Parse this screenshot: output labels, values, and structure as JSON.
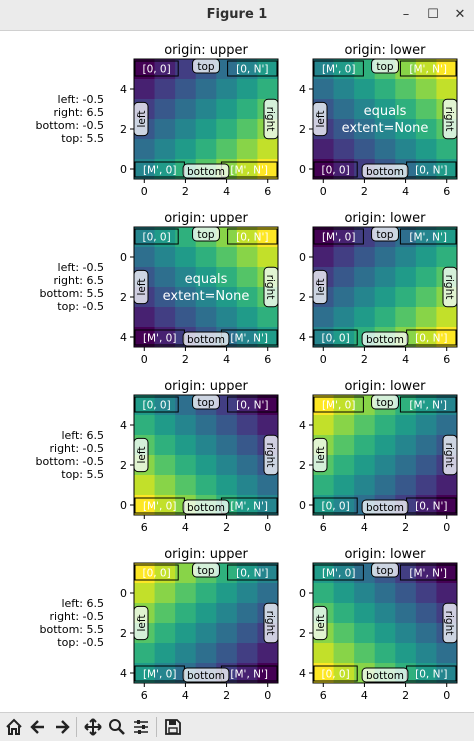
{
  "window": {
    "title": "Figure 1",
    "minimize": "–",
    "maximize": "☐",
    "close": "✕"
  },
  "toolbar": [
    {
      "name": "home-icon"
    },
    {
      "name": "back-icon"
    },
    {
      "name": "forward-icon"
    },
    {
      "name": "pan-icon"
    },
    {
      "name": "zoom-icon"
    },
    {
      "name": "configure-subplots-icon"
    },
    {
      "name": "save-icon"
    }
  ],
  "rows": [
    {
      "label": [
        "left: -0.5",
        "right: 6.5",
        "bottom: -0.5",
        "top: 5.5"
      ]
    },
    {
      "label": [
        "left: -0.5",
        "right: 6.5",
        "bottom: 5.5",
        "top: -0.5"
      ]
    },
    {
      "label": [
        "left: 6.5",
        "right: -0.5",
        "bottom: -0.5",
        "top: 5.5"
      ]
    },
    {
      "label": [
        "left: 6.5",
        "right: -0.5",
        "bottom: 5.5",
        "top: -0.5"
      ]
    }
  ],
  "chart_data": [
    {
      "type": "heatmap",
      "title": "origin: upper",
      "xlim": [
        -0.5,
        6.5
      ],
      "ylim": [
        -0.5,
        5.5
      ],
      "xticks": [
        "0",
        "2",
        "4",
        "6"
      ],
      "yticks": [
        "4",
        "2",
        "0"
      ],
      "corners": {
        "tl": "[0, 0]",
        "tr": "[0, N']",
        "bl": "[M', 0]",
        "br": "[M', N']"
      },
      "sides": {
        "top": "top",
        "bottom": "bottom",
        "left": "left",
        "right": "right"
      },
      "note": ""
    },
    {
      "type": "heatmap",
      "title": "origin: lower",
      "xlim": [
        -0.5,
        6.5
      ],
      "ylim": [
        -0.5,
        5.5
      ],
      "xticks": [
        "0",
        "2",
        "4",
        "6"
      ],
      "yticks": [
        "4",
        "2",
        "0"
      ],
      "corners": {
        "tl": "[M', 0]",
        "tr": "[M', N']",
        "bl": "[0, 0]",
        "br": "[0, N']"
      },
      "sides": {
        "top": "top",
        "bottom": "bottom",
        "left": "left",
        "right": "right"
      },
      "note": "equals\nextent=None"
    },
    {
      "type": "heatmap",
      "title": "origin: upper",
      "xlim": [
        -0.5,
        6.5
      ],
      "ylim": [
        5.5,
        -0.5
      ],
      "xticks": [
        "0",
        "2",
        "4",
        "6"
      ],
      "yticks": [
        "0",
        "2",
        "4"
      ],
      "corners": {
        "tl": "[0, 0]",
        "tr": "[0, N']",
        "bl": "[M', 0]",
        "br": "[M', N']"
      },
      "sides": {
        "top": "top",
        "bottom": "bottom",
        "left": "left",
        "right": "right"
      },
      "note": "equals\nextent=None"
    },
    {
      "type": "heatmap",
      "title": "origin: lower",
      "xlim": [
        -0.5,
        6.5
      ],
      "ylim": [
        5.5,
        -0.5
      ],
      "xticks": [
        "0",
        "2",
        "4",
        "6"
      ],
      "yticks": [
        "0",
        "2",
        "4"
      ],
      "corners": {
        "tl": "[M', 0]",
        "tr": "[M', N']",
        "bl": "[0, 0]",
        "br": "[0, N']"
      },
      "sides": {
        "top": "top",
        "bottom": "bottom",
        "left": "left",
        "right": "right"
      },
      "note": ""
    },
    {
      "type": "heatmap",
      "title": "origin: upper",
      "xlim": [
        6.5,
        -0.5
      ],
      "ylim": [
        -0.5,
        5.5
      ],
      "xticks": [
        "6",
        "4",
        "2",
        "0"
      ],
      "yticks": [
        "4",
        "2",
        "0"
      ],
      "corners": {
        "tl": "[0, 0]",
        "tr": "[0, N']",
        "bl": "[M', 0]",
        "br": "[M', N']"
      },
      "sides": {
        "top": "top",
        "bottom": "bottom",
        "left": "left",
        "right": "right"
      },
      "note": ""
    },
    {
      "type": "heatmap",
      "title": "origin: lower",
      "xlim": [
        6.5,
        -0.5
      ],
      "ylim": [
        -0.5,
        5.5
      ],
      "xticks": [
        "6",
        "4",
        "2",
        "0"
      ],
      "yticks": [
        "4",
        "2",
        "0"
      ],
      "corners": {
        "tl": "[M', 0]",
        "tr": "[M', N']",
        "bl": "[0, 0]",
        "br": "[0, N']"
      },
      "sides": {
        "top": "top",
        "bottom": "bottom",
        "left": "left",
        "right": "right"
      },
      "note": ""
    },
    {
      "type": "heatmap",
      "title": "origin: upper",
      "xlim": [
        6.5,
        -0.5
      ],
      "ylim": [
        5.5,
        -0.5
      ],
      "xticks": [
        "6",
        "4",
        "2",
        "0"
      ],
      "yticks": [
        "0",
        "2",
        "4"
      ],
      "corners": {
        "tl": "[0, 0]",
        "tr": "[0, N']",
        "bl": "[M', 0]",
        "br": "[M', N']"
      },
      "sides": {
        "top": "top",
        "bottom": "bottom",
        "left": "left",
        "right": "right"
      },
      "note": ""
    },
    {
      "type": "heatmap",
      "title": "origin: lower",
      "xlim": [
        6.5,
        -0.5
      ],
      "ylim": [
        5.5,
        -0.5
      ],
      "xticks": [
        "6",
        "4",
        "2",
        "0"
      ],
      "yticks": [
        "0",
        "2",
        "4"
      ],
      "corners": {
        "tl": "[M', 0]",
        "tr": "[M', N']",
        "bl": "[0, 0]",
        "br": "[0, N']"
      },
      "sides": {
        "top": "top",
        "bottom": "bottom",
        "left": "left",
        "right": "right"
      },
      "note": ""
    }
  ]
}
